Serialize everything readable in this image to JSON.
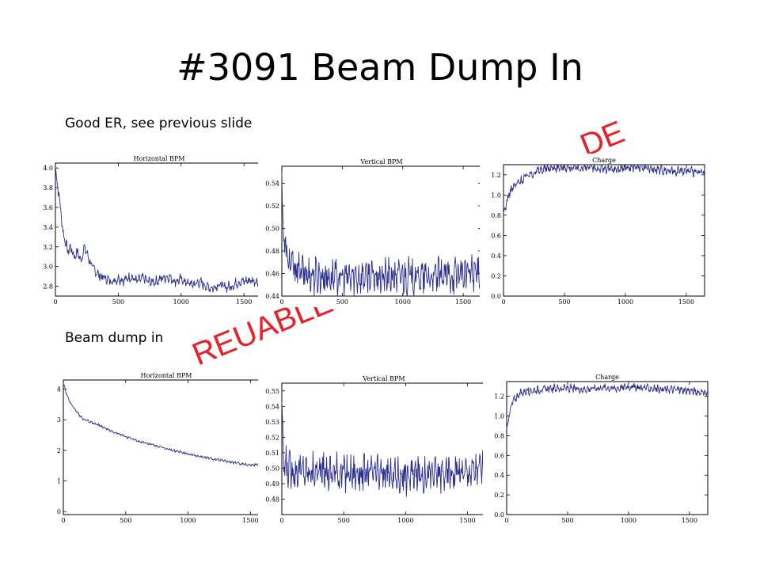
{
  "slide": {
    "title": "#3091 Beam Dump In",
    "caption_top": "Good ER, see previous slide",
    "caption_bottom": "Beam dump in",
    "watermark_left": "REUABLE",
    "watermark_right": "DE"
  },
  "colors": {
    "series": "#2b2e8e",
    "watermark": "#e8202a",
    "axis": "#000000"
  },
  "chart_data": [
    {
      "type": "line",
      "title": "Horizontal BPM",
      "xlim": [
        0,
        1650
      ],
      "ylim": [
        2.7,
        4.05
      ],
      "xticks": [
        0,
        500,
        1000,
        1500
      ],
      "yticks": [
        2.8,
        3.0,
        3.2,
        3.4,
        3.6,
        3.8,
        4.0
      ],
      "ytick_labels": [
        "2.8",
        "3.0",
        "3.2",
        "3.4",
        "3.6",
        "3.8",
        "4.0"
      ],
      "series": [
        {
          "x": [
            0,
            20,
            40,
            60,
            80,
            100,
            120,
            150,
            180,
            200,
            230,
            260,
            290,
            320,
            360,
            400,
            450,
            500,
            550,
            600,
            650,
            700,
            750,
            800,
            850,
            900,
            950,
            1000,
            1050,
            1100,
            1150,
            1200,
            1250,
            1300,
            1350,
            1400,
            1450,
            1500,
            1550,
            1600,
            1650
          ],
          "y": [
            4.0,
            3.8,
            3.6,
            3.35,
            3.25,
            3.15,
            3.2,
            3.1,
            3.15,
            3.05,
            3.2,
            3.1,
            3.0,
            2.95,
            2.9,
            2.88,
            2.85,
            2.88,
            2.86,
            2.9,
            2.85,
            2.88,
            2.84,
            2.85,
            2.88,
            2.9,
            2.85,
            2.87,
            2.83,
            2.82,
            2.84,
            2.8,
            2.78,
            2.82,
            2.79,
            2.8,
            2.84,
            2.85,
            2.86,
            2.85,
            2.87
          ],
          "noise": 0.04
        }
      ]
    },
    {
      "type": "line",
      "title": "Vertical BPM",
      "xlim": [
        0,
        1650
      ],
      "ylim": [
        0.44,
        0.555
      ],
      "xticks": [
        0,
        500,
        1000,
        1500
      ],
      "yticks": [
        0.44,
        0.46,
        0.48,
        0.5,
        0.52,
        0.54
      ],
      "ytick_labels": [
        "0.44",
        "0.46",
        "0.48",
        "0.50",
        "0.52",
        "0.54"
      ],
      "series": [
        {
          "x": [
            0,
            10,
            30,
            60,
            100,
            150,
            200,
            300,
            400,
            500,
            600,
            700,
            800,
            900,
            1000,
            1100,
            1200,
            1300,
            1400,
            1500,
            1600,
            1650
          ],
          "y": [
            0.545,
            0.5,
            0.48,
            0.47,
            0.465,
            0.462,
            0.46,
            0.458,
            0.457,
            0.456,
            0.457,
            0.458,
            0.456,
            0.457,
            0.458,
            0.457,
            0.456,
            0.457,
            0.458,
            0.46,
            0.461,
            0.462
          ],
          "noise": 0.012
        }
      ]
    },
    {
      "type": "line",
      "title": "Charge",
      "xlim": [
        0,
        1650
      ],
      "ylim": [
        0,
        1.3
      ],
      "xticks": [
        0,
        500,
        1000,
        1500
      ],
      "yticks": [
        0,
        0.2,
        0.4,
        0.6,
        0.8,
        1.0,
        1.2
      ],
      "ytick_labels": [
        "0.0",
        "0.2",
        "0.4",
        "0.6",
        "0.8",
        "1.0",
        "1.2"
      ],
      "series": [
        {
          "x": [
            0,
            30,
            60,
            100,
            150,
            200,
            300,
            400,
            500,
            600,
            700,
            800,
            900,
            1000,
            1100,
            1200,
            1300,
            1400,
            1500,
            1600,
            1650
          ],
          "y": [
            0.8,
            0.95,
            1.05,
            1.1,
            1.15,
            1.2,
            1.25,
            1.27,
            1.28,
            1.26,
            1.27,
            1.26,
            1.25,
            1.27,
            1.28,
            1.26,
            1.25,
            1.24,
            1.24,
            1.22,
            1.22
          ],
          "noise": 0.035
        }
      ]
    },
    {
      "type": "line",
      "title": "Horizontal BPM",
      "xlim": [
        0,
        1650
      ],
      "ylim": [
        -0.1,
        4.3
      ],
      "xticks": [
        0,
        500,
        1000,
        1500
      ],
      "yticks": [
        0,
        1,
        2,
        3,
        4
      ],
      "ytick_labels": [
        "0",
        "1",
        "2",
        "3",
        "4"
      ],
      "series": [
        {
          "x": [
            0,
            30,
            60,
            100,
            150,
            200,
            300,
            400,
            500,
            600,
            700,
            800,
            900,
            1000,
            1100,
            1200,
            1300,
            1400,
            1500,
            1600,
            1650
          ],
          "y": [
            4.2,
            3.8,
            3.5,
            3.3,
            3.05,
            2.95,
            2.8,
            2.6,
            2.45,
            2.3,
            2.2,
            2.08,
            1.98,
            1.88,
            1.8,
            1.72,
            1.65,
            1.58,
            1.52,
            1.55,
            1.5
          ],
          "noise": 0.03
        }
      ]
    },
    {
      "type": "line",
      "title": "Vertical BPM",
      "xlim": [
        0,
        1650
      ],
      "ylim": [
        0.47,
        0.555
      ],
      "xticks": [
        0,
        500,
        1000,
        1500
      ],
      "yticks": [
        0.48,
        0.49,
        0.5,
        0.51,
        0.52,
        0.53,
        0.54,
        0.55
      ],
      "ytick_labels": [
        "0.48",
        "0.49",
        "0.50",
        "0.51",
        "0.52",
        "0.53",
        "0.54",
        "0.55"
      ],
      "series": [
        {
          "x": [
            0,
            10,
            40,
            100,
            300,
            500,
            700,
            900,
            1000,
            1100,
            1300,
            1500,
            1600,
            1650
          ],
          "y": [
            0.545,
            0.505,
            0.5,
            0.499,
            0.498,
            0.497,
            0.497,
            0.496,
            0.495,
            0.496,
            0.497,
            0.498,
            0.5,
            0.501
          ],
          "noise": 0.009
        }
      ]
    },
    {
      "type": "line",
      "title": "Charge",
      "xlim": [
        0,
        1650
      ],
      "ylim": [
        0,
        1.35
      ],
      "xticks": [
        0,
        500,
        1000,
        1500
      ],
      "yticks": [
        0,
        0.2,
        0.4,
        0.6,
        0.8,
        1.0,
        1.2
      ],
      "ytick_labels": [
        "0.0",
        "0.2",
        "0.4",
        "0.6",
        "0.8",
        "1.0",
        "1.2"
      ],
      "series": [
        {
          "x": [
            0,
            20,
            50,
            100,
            150,
            200,
            300,
            400,
            500,
            600,
            700,
            800,
            900,
            1000,
            1100,
            1200,
            1300,
            1400,
            1500,
            1600,
            1650
          ],
          "y": [
            0.88,
            1.0,
            1.15,
            1.22,
            1.25,
            1.26,
            1.27,
            1.28,
            1.28,
            1.27,
            1.28,
            1.29,
            1.28,
            1.3,
            1.29,
            1.28,
            1.27,
            1.27,
            1.26,
            1.24,
            1.23
          ],
          "noise": 0.03
        }
      ]
    }
  ]
}
